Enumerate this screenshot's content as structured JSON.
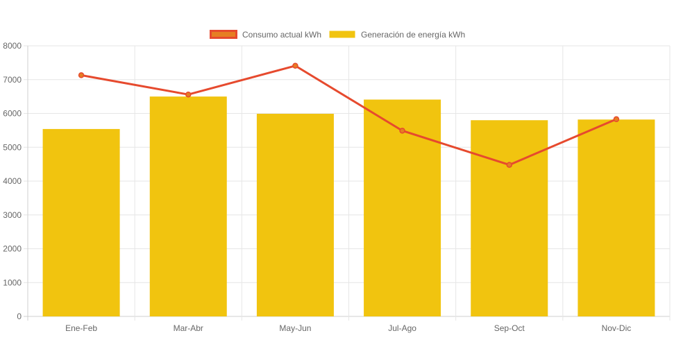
{
  "chart_data": {
    "type": "bar",
    "categories": [
      "Ene-Feb",
      "Mar-Abr",
      "May-Jun",
      "Jul-Ago",
      "Sep-Oct",
      "Nov-Dic"
    ],
    "series": [
      {
        "name": "Consumo actual kWh",
        "type": "line",
        "color": "#e64a2e",
        "values": [
          7130,
          6560,
          7410,
          5490,
          4480,
          5830
        ]
      },
      {
        "name": "Generación de energía kWh",
        "type": "bar",
        "color": "#f1c40f",
        "values": [
          5540,
          6500,
          5990,
          6410,
          5800,
          5820
        ]
      }
    ],
    "yticks": [
      "0",
      "1000",
      "2000",
      "3000",
      "4000",
      "5000",
      "6000",
      "7000",
      "8000"
    ],
    "ylim": [
      0,
      8000
    ],
    "grid": true,
    "legend": "top-center"
  }
}
